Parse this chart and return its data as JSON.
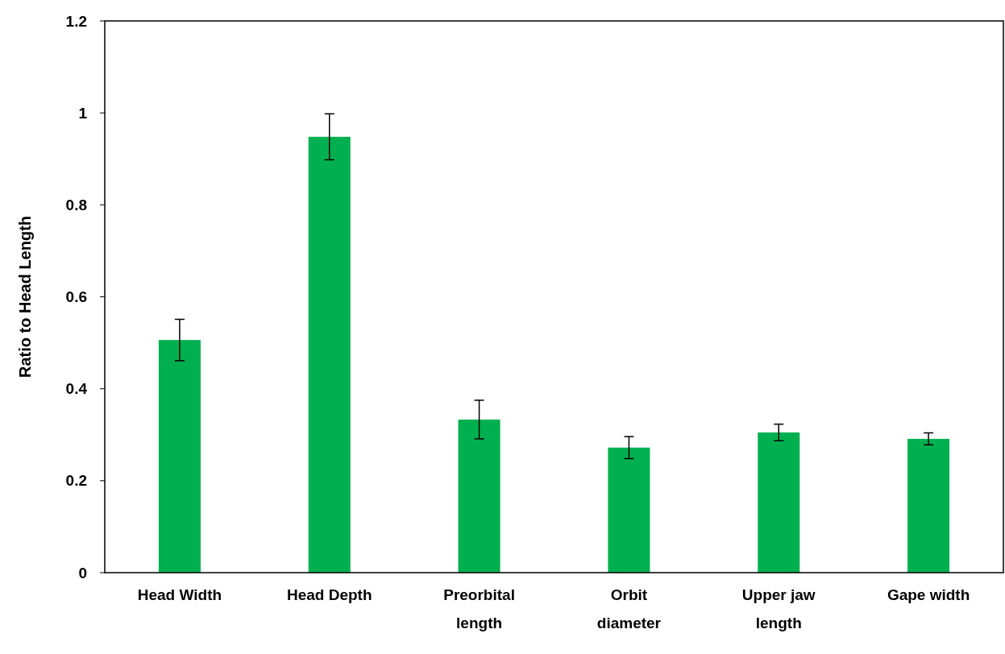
{
  "chart_data": {
    "type": "bar",
    "ylabel": "Ratio to Head Length",
    "categories": [
      "Head Width",
      "Head Depth",
      "Preorbital length",
      "Orbit diameter",
      "Upper jaw length",
      "Gape width"
    ],
    "values": [
      0.506,
      0.948,
      0.333,
      0.272,
      0.305,
      0.291
    ],
    "errors": [
      0.045,
      0.05,
      0.042,
      0.024,
      0.018,
      0.013
    ],
    "color": "#00b050",
    "ylim": [
      0,
      1.2
    ],
    "yticks": [
      0,
      0.2,
      0.4,
      0.6,
      0.8,
      1,
      1.2
    ],
    "grid": false
  }
}
